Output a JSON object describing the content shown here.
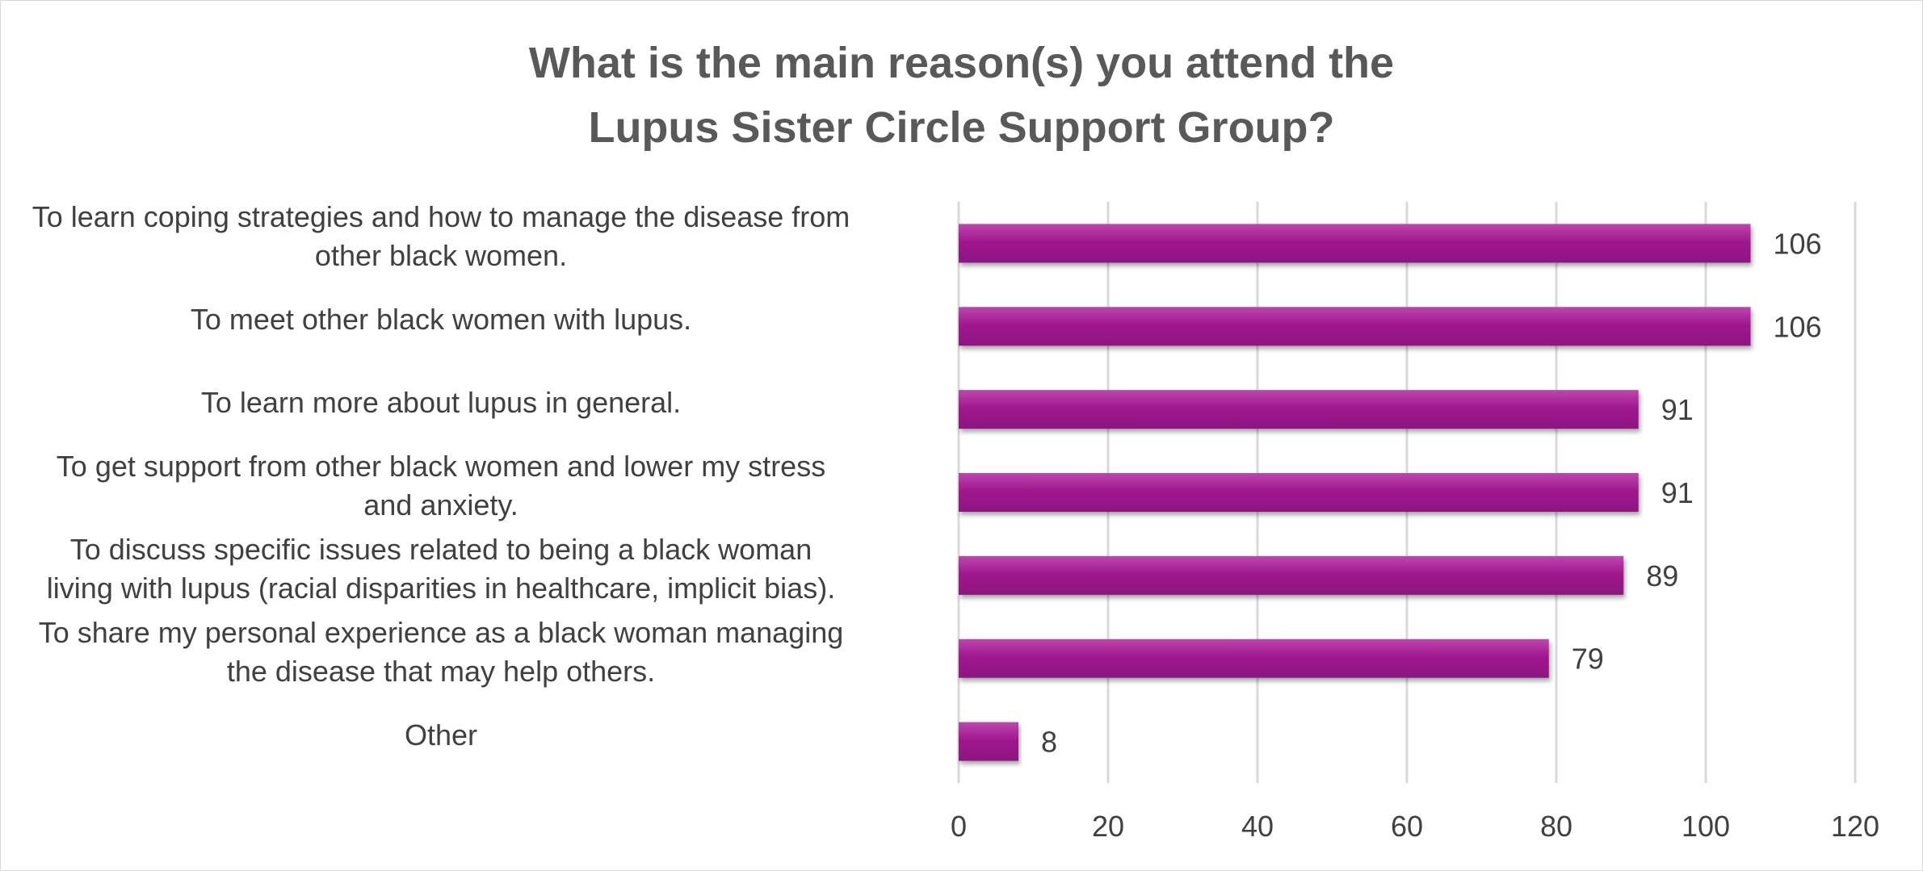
{
  "chart_data": {
    "type": "bar",
    "orientation": "horizontal",
    "title": [
      "What is the main reason(s) you attend the",
      "Lupus Sister Circle Support Group?"
    ],
    "categories": [
      [
        "To learn coping strategies and how to manage the disease from",
        "other black women."
      ],
      [
        "To meet other black women with lupus."
      ],
      [
        "To learn more about lupus in general."
      ],
      [
        "To get support from other black women and lower my stress",
        "and anxiety."
      ],
      [
        "To discuss specific issues related to being a black woman",
        "living with lupus (racial disparities in healthcare, implicit bias)."
      ],
      [
        "To share my personal experience as a black woman managing",
        "the disease that may help others."
      ],
      [
        "Other"
      ]
    ],
    "values": [
      106,
      106,
      91,
      91,
      89,
      79,
      8
    ],
    "xlim": [
      0,
      120
    ],
    "xticks": [
      0,
      20,
      40,
      60,
      80,
      100,
      120
    ],
    "xlabel": "",
    "ylabel": "",
    "grid": true,
    "data_labels": true,
    "legend": "none",
    "colors": {
      "bar": "#a0198f",
      "bar_light": "#bd46ae",
      "bar_dark": "#8c1580",
      "grid": "#d9d9d9",
      "text": "#404040",
      "title": "#595959"
    }
  }
}
